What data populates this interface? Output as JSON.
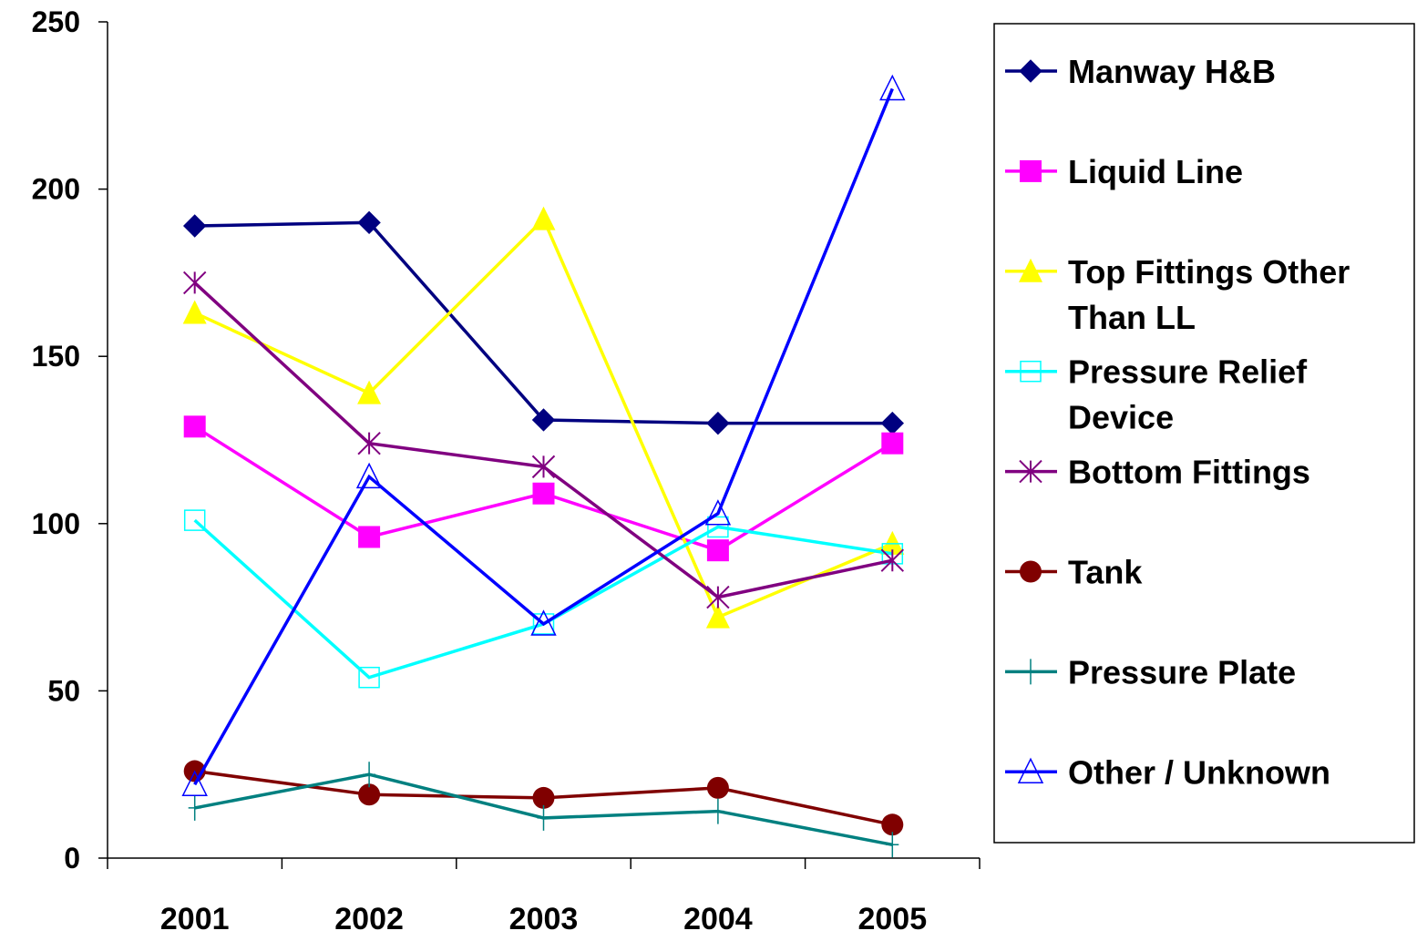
{
  "chart_data": {
    "type": "line",
    "categories": [
      "2001",
      "2002",
      "2003",
      "2004",
      "2005"
    ],
    "series": [
      {
        "name": "Manway H&B",
        "color": "#000080",
        "marker": "diamond",
        "values": [
          189,
          190,
          131,
          130,
          130
        ]
      },
      {
        "name": "Liquid Line",
        "color": "#ff00ff",
        "marker": "square",
        "values": [
          129,
          96,
          109,
          92,
          124
        ]
      },
      {
        "name": "Top Fittings Other Than LL",
        "color": "#ffff00",
        "marker": "triangle",
        "values": [
          163,
          139,
          191,
          72,
          94
        ]
      },
      {
        "name": "Pressure Relief Device",
        "color": "#00ffff",
        "marker": "open-square",
        "values": [
          101,
          54,
          70,
          99,
          91
        ]
      },
      {
        "name": "Bottom Fittings",
        "color": "#800080",
        "marker": "asterisk",
        "values": [
          172,
          124,
          117,
          78,
          89
        ]
      },
      {
        "name": "Tank",
        "color": "#800000",
        "marker": "circle",
        "values": [
          26,
          19,
          18,
          21,
          10
        ]
      },
      {
        "name": "Pressure Plate",
        "color": "#008080",
        "marker": "plus",
        "values": [
          15,
          25,
          12,
          14,
          4
        ]
      },
      {
        "name": "Other / Unknown",
        "color": "#0000ff",
        "marker": "open-triangle",
        "values": [
          22,
          114,
          70,
          103,
          230
        ]
      }
    ],
    "ylim": [
      0,
      250
    ],
    "yticks": [
      0,
      50,
      100,
      150,
      200,
      250
    ],
    "legend": "right"
  }
}
